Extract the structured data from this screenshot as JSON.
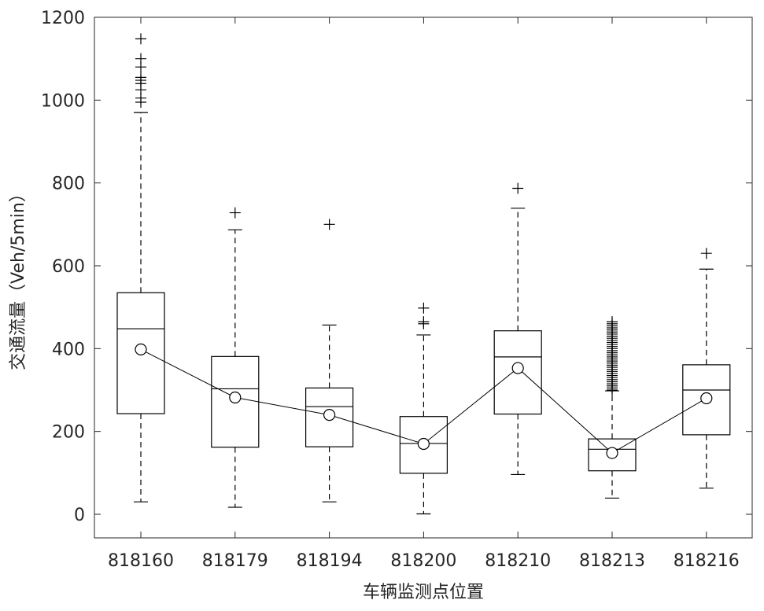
{
  "chart_data": {
    "type": "box",
    "xlabel": "车辆监测点位置",
    "ylabel": "交通流量（Veh/5min）",
    "ylim": [
      -55,
      1200
    ],
    "yticks": [
      0,
      200,
      400,
      600,
      800,
      1000,
      1200
    ],
    "categories": [
      "818160",
      "818179",
      "818194",
      "818200",
      "818210",
      "818213",
      "818216"
    ],
    "boxes": [
      {
        "q1": 243,
        "median": 448,
        "q3": 535,
        "whisker_low": 30,
        "whisker_high": 970,
        "mean": 398,
        "outliers": [
          995,
          1005,
          1025,
          1040,
          1048,
          1055,
          1080,
          1100,
          1148
        ]
      },
      {
        "q1": 162,
        "median": 303,
        "q3": 381,
        "whisker_low": 17,
        "whisker_high": 687,
        "mean": 282,
        "outliers": [
          728
        ]
      },
      {
        "q1": 163,
        "median": 260,
        "q3": 305,
        "whisker_low": 30,
        "whisker_high": 457,
        "mean": 240,
        "outliers": [
          700
        ]
      },
      {
        "q1": 99,
        "median": 171,
        "q3": 236,
        "whisker_low": 1,
        "whisker_high": 433,
        "mean": 170,
        "outliers": [
          460,
          465,
          498
        ]
      },
      {
        "q1": 242,
        "median": 380,
        "q3": 443,
        "whisker_low": 96,
        "whisker_high": 739,
        "mean": 353,
        "outliers": [
          787
        ]
      },
      {
        "q1": 105,
        "median": 157,
        "q3": 182,
        "whisker_low": 39,
        "whisker_high": 298,
        "mean": 148,
        "outliers": [
          300,
          305,
          310,
          315,
          320,
          325,
          330,
          335,
          340,
          345,
          350,
          355,
          360,
          365,
          370,
          375,
          380,
          385,
          390,
          395,
          400,
          405,
          410,
          415,
          420,
          425,
          430,
          435,
          440,
          445,
          450,
          455,
          460,
          465
        ]
      },
      {
        "q1": 192,
        "median": 300,
        "q3": 361,
        "whisker_low": 63,
        "whisker_high": 592,
        "mean": 280,
        "outliers": [
          630
        ]
      }
    ],
    "mean_line": true,
    "grid": false,
    "colors": {
      "stroke": "#000000",
      "axis": "#262626"
    }
  }
}
